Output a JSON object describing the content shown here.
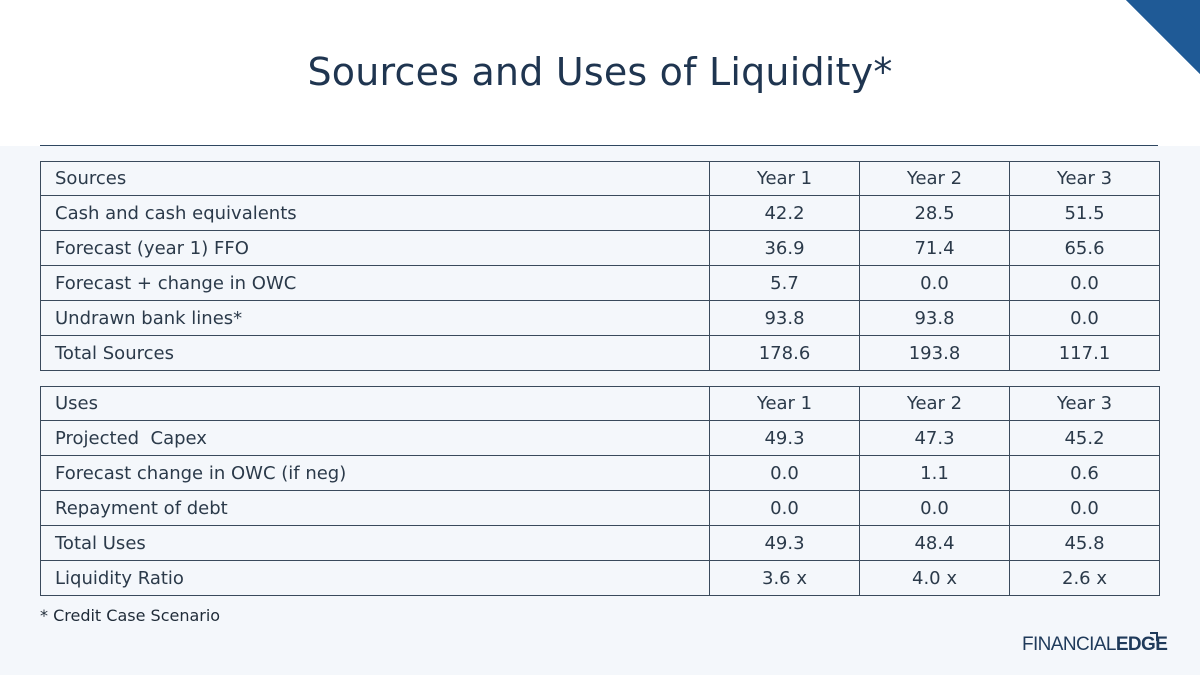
{
  "title": "Sources and Uses of Liquidity*",
  "sources_table": {
    "header": {
      "label": "Sources",
      "years": [
        "Year 1",
        "Year 2",
        "Year 3"
      ]
    },
    "rows": [
      {
        "label": "Cash and cash equivalents",
        "values": [
          "42.2",
          "28.5",
          "51.5"
        ]
      },
      {
        "label": "Forecast (year 1) FFO",
        "values": [
          "36.9",
          "71.4",
          "65.6"
        ]
      },
      {
        "label": "Forecast + change in OWC",
        "values": [
          "5.7",
          "0.0",
          "0.0"
        ]
      },
      {
        "label": "Undrawn bank lines*",
        "values": [
          "93.8",
          "93.8",
          "0.0"
        ]
      },
      {
        "label": "Total Sources",
        "values": [
          "178.6",
          "193.8",
          "117.1"
        ]
      }
    ]
  },
  "uses_table": {
    "header": {
      "label": "Uses",
      "years": [
        "Year 1",
        "Year 2",
        "Year 3"
      ]
    },
    "rows": [
      {
        "label": "Projected  Capex",
        "values": [
          "49.3",
          "47.3",
          "45.2"
        ]
      },
      {
        "label": "Forecast change in OWC (if neg)",
        "values": [
          "0.0",
          "1.1",
          "0.6"
        ]
      },
      {
        "label": "Repayment of debt",
        "values": [
          "0.0",
          "0.0",
          "0.0"
        ]
      },
      {
        "label": "Total Uses",
        "values": [
          "49.3",
          "48.4",
          "45.8"
        ]
      },
      {
        "label": "Liquidity Ratio",
        "values": [
          "3.6 x",
          "4.0 x",
          "2.6 x"
        ]
      }
    ]
  },
  "footnote": "* Credit Case Scenario",
  "logo": {
    "part1": "FINANCIAL",
    "part2": "EDGE"
  },
  "colors": {
    "accent": "#1f5a96",
    "title": "#1f3550",
    "rule": "#2e4660"
  }
}
